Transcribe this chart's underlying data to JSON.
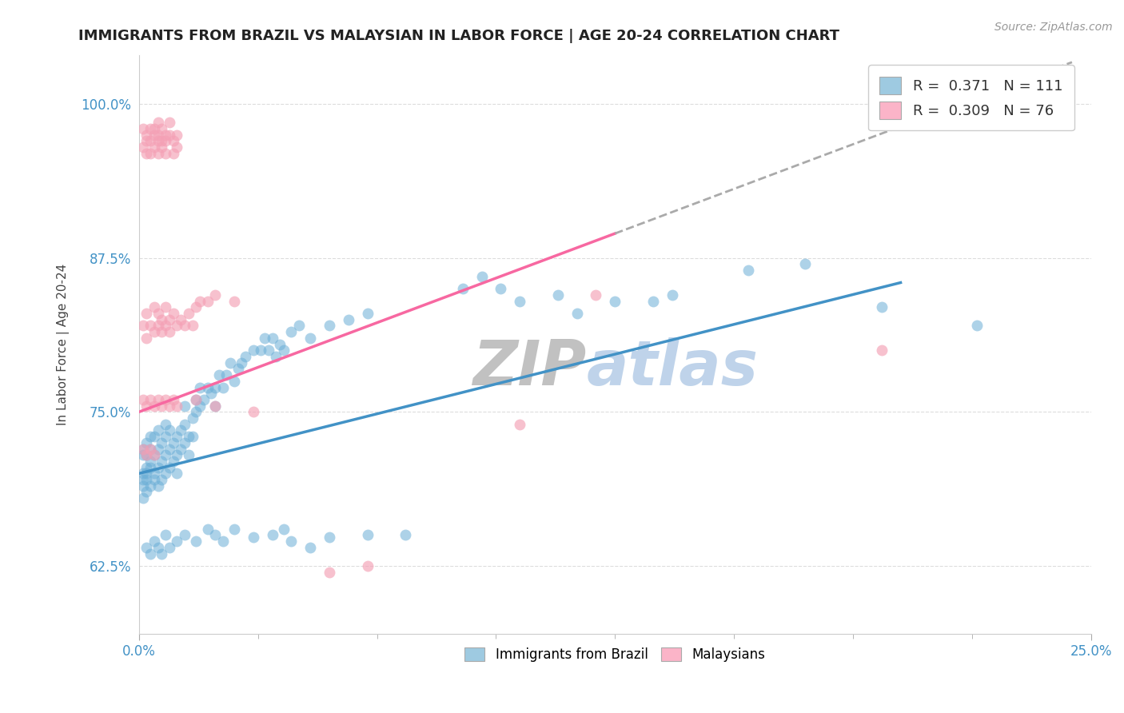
{
  "title": "IMMIGRANTS FROM BRAZIL VS MALAYSIAN IN LABOR FORCE | AGE 20-24 CORRELATION CHART",
  "source_text": "Source: ZipAtlas.com",
  "ylabel": "In Labor Force | Age 20-24",
  "x_min": 0.0,
  "x_max": 0.25,
  "y_min": 0.57,
  "y_max": 1.04,
  "x_ticks": [
    0.0,
    0.25
  ],
  "x_tick_labels": [
    "0.0%",
    "25.0%"
  ],
  "y_ticks": [
    0.625,
    0.75,
    0.875,
    1.0
  ],
  "y_tick_labels": [
    "62.5%",
    "75.0%",
    "87.5%",
    "100.0%"
  ],
  "brazil_color": "#6baed6",
  "malaysia_color": "#f4a0b5",
  "brazil_R": 0.371,
  "brazil_N": 111,
  "malaysia_R": 0.309,
  "malaysia_N": 76,
  "brazil_line_color": "#4292c6",
  "malaysia_line_color": "#f768a1",
  "legend_brazil_color": "#9ecae1",
  "legend_malaysia_color": "#fbb4c8",
  "brazil_scatter": [
    [
      0.001,
      0.695
    ],
    [
      0.001,
      0.715
    ],
    [
      0.001,
      0.68
    ],
    [
      0.001,
      0.7
    ],
    [
      0.001,
      0.72
    ],
    [
      0.001,
      0.69
    ],
    [
      0.002,
      0.7
    ],
    [
      0.002,
      0.715
    ],
    [
      0.002,
      0.685
    ],
    [
      0.002,
      0.705
    ],
    [
      0.002,
      0.725
    ],
    [
      0.002,
      0.695
    ],
    [
      0.003,
      0.71
    ],
    [
      0.003,
      0.73
    ],
    [
      0.003,
      0.69
    ],
    [
      0.003,
      0.705
    ],
    [
      0.003,
      0.72
    ],
    [
      0.004,
      0.715
    ],
    [
      0.004,
      0.7
    ],
    [
      0.004,
      0.73
    ],
    [
      0.004,
      0.695
    ],
    [
      0.005,
      0.72
    ],
    [
      0.005,
      0.705
    ],
    [
      0.005,
      0.735
    ],
    [
      0.005,
      0.69
    ],
    [
      0.006,
      0.725
    ],
    [
      0.006,
      0.71
    ],
    [
      0.006,
      0.695
    ],
    [
      0.007,
      0.73
    ],
    [
      0.007,
      0.715
    ],
    [
      0.007,
      0.7
    ],
    [
      0.007,
      0.74
    ],
    [
      0.008,
      0.72
    ],
    [
      0.008,
      0.705
    ],
    [
      0.008,
      0.735
    ],
    [
      0.009,
      0.725
    ],
    [
      0.009,
      0.71
    ],
    [
      0.01,
      0.73
    ],
    [
      0.01,
      0.715
    ],
    [
      0.01,
      0.7
    ],
    [
      0.011,
      0.735
    ],
    [
      0.011,
      0.72
    ],
    [
      0.012,
      0.74
    ],
    [
      0.012,
      0.725
    ],
    [
      0.012,
      0.755
    ],
    [
      0.013,
      0.73
    ],
    [
      0.013,
      0.715
    ],
    [
      0.014,
      0.745
    ],
    [
      0.014,
      0.73
    ],
    [
      0.015,
      0.75
    ],
    [
      0.015,
      0.76
    ],
    [
      0.016,
      0.755
    ],
    [
      0.016,
      0.77
    ],
    [
      0.017,
      0.76
    ],
    [
      0.018,
      0.77
    ],
    [
      0.019,
      0.765
    ],
    [
      0.02,
      0.77
    ],
    [
      0.02,
      0.755
    ],
    [
      0.021,
      0.78
    ],
    [
      0.022,
      0.77
    ],
    [
      0.023,
      0.78
    ],
    [
      0.024,
      0.79
    ],
    [
      0.025,
      0.775
    ],
    [
      0.026,
      0.785
    ],
    [
      0.027,
      0.79
    ],
    [
      0.028,
      0.795
    ],
    [
      0.03,
      0.8
    ],
    [
      0.032,
      0.8
    ],
    [
      0.033,
      0.81
    ],
    [
      0.034,
      0.8
    ],
    [
      0.035,
      0.81
    ],
    [
      0.036,
      0.795
    ],
    [
      0.037,
      0.805
    ],
    [
      0.038,
      0.8
    ],
    [
      0.04,
      0.815
    ],
    [
      0.042,
      0.82
    ],
    [
      0.045,
      0.81
    ],
    [
      0.05,
      0.82
    ],
    [
      0.055,
      0.825
    ],
    [
      0.06,
      0.83
    ],
    [
      0.002,
      0.64
    ],
    [
      0.003,
      0.635
    ],
    [
      0.004,
      0.645
    ],
    [
      0.005,
      0.64
    ],
    [
      0.006,
      0.635
    ],
    [
      0.007,
      0.65
    ],
    [
      0.008,
      0.64
    ],
    [
      0.01,
      0.645
    ],
    [
      0.012,
      0.65
    ],
    [
      0.015,
      0.645
    ],
    [
      0.018,
      0.655
    ],
    [
      0.02,
      0.65
    ],
    [
      0.022,
      0.645
    ],
    [
      0.025,
      0.655
    ],
    [
      0.03,
      0.648
    ],
    [
      0.035,
      0.65
    ],
    [
      0.038,
      0.655
    ],
    [
      0.04,
      0.645
    ],
    [
      0.045,
      0.64
    ],
    [
      0.05,
      0.648
    ],
    [
      0.06,
      0.65
    ],
    [
      0.07,
      0.65
    ],
    [
      0.085,
      0.85
    ],
    [
      0.09,
      0.86
    ],
    [
      0.095,
      0.85
    ],
    [
      0.1,
      0.84
    ],
    [
      0.11,
      0.845
    ],
    [
      0.115,
      0.83
    ],
    [
      0.125,
      0.84
    ],
    [
      0.135,
      0.84
    ],
    [
      0.14,
      0.845
    ],
    [
      0.16,
      0.865
    ],
    [
      0.175,
      0.87
    ],
    [
      0.195,
      0.835
    ],
    [
      0.22,
      0.82
    ]
  ],
  "malaysia_scatter": [
    [
      0.001,
      0.98
    ],
    [
      0.001,
      0.965
    ],
    [
      0.002,
      0.975
    ],
    [
      0.002,
      0.97
    ],
    [
      0.002,
      0.96
    ],
    [
      0.003,
      0.98
    ],
    [
      0.003,
      0.97
    ],
    [
      0.003,
      0.96
    ],
    [
      0.004,
      0.975
    ],
    [
      0.004,
      0.965
    ],
    [
      0.004,
      0.98
    ],
    [
      0.005,
      0.97
    ],
    [
      0.005,
      0.96
    ],
    [
      0.005,
      0.975
    ],
    [
      0.005,
      0.985
    ],
    [
      0.006,
      0.97
    ],
    [
      0.006,
      0.965
    ],
    [
      0.006,
      0.98
    ],
    [
      0.007,
      0.975
    ],
    [
      0.007,
      0.97
    ],
    [
      0.007,
      0.96
    ],
    [
      0.008,
      0.975
    ],
    [
      0.008,
      0.985
    ],
    [
      0.009,
      0.97
    ],
    [
      0.009,
      0.96
    ],
    [
      0.01,
      0.975
    ],
    [
      0.01,
      0.965
    ],
    [
      0.001,
      0.82
    ],
    [
      0.002,
      0.81
    ],
    [
      0.002,
      0.83
    ],
    [
      0.003,
      0.82
    ],
    [
      0.004,
      0.815
    ],
    [
      0.004,
      0.835
    ],
    [
      0.005,
      0.82
    ],
    [
      0.005,
      0.83
    ],
    [
      0.006,
      0.825
    ],
    [
      0.006,
      0.815
    ],
    [
      0.007,
      0.82
    ],
    [
      0.007,
      0.835
    ],
    [
      0.008,
      0.825
    ],
    [
      0.008,
      0.815
    ],
    [
      0.009,
      0.83
    ],
    [
      0.01,
      0.82
    ],
    [
      0.011,
      0.825
    ],
    [
      0.012,
      0.82
    ],
    [
      0.013,
      0.83
    ],
    [
      0.014,
      0.82
    ],
    [
      0.015,
      0.835
    ],
    [
      0.016,
      0.84
    ],
    [
      0.018,
      0.84
    ],
    [
      0.02,
      0.845
    ],
    [
      0.025,
      0.84
    ],
    [
      0.001,
      0.76
    ],
    [
      0.002,
      0.755
    ],
    [
      0.003,
      0.76
    ],
    [
      0.004,
      0.755
    ],
    [
      0.005,
      0.76
    ],
    [
      0.006,
      0.755
    ],
    [
      0.007,
      0.76
    ],
    [
      0.008,
      0.755
    ],
    [
      0.009,
      0.76
    ],
    [
      0.01,
      0.755
    ],
    [
      0.015,
      0.76
    ],
    [
      0.02,
      0.755
    ],
    [
      0.001,
      0.72
    ],
    [
      0.002,
      0.715
    ],
    [
      0.003,
      0.72
    ],
    [
      0.004,
      0.715
    ],
    [
      0.03,
      0.75
    ],
    [
      0.05,
      0.62
    ],
    [
      0.06,
      0.625
    ],
    [
      0.1,
      0.74
    ],
    [
      0.12,
      0.845
    ],
    [
      0.195,
      0.8
    ]
  ]
}
